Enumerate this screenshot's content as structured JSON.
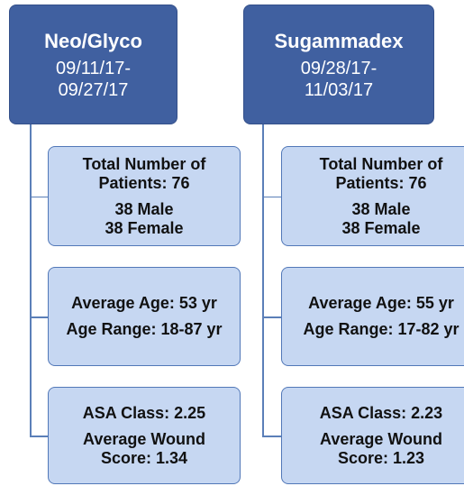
{
  "columns": [
    {
      "title": "Neo/Glyco",
      "dates": [
        "09/11/17-",
        "09/27/17"
      ],
      "boxes": [
        {
          "paragraphs": [
            [
              "Total Number of",
              "Patients: 76"
            ],
            [
              "38 Male",
              "38 Female"
            ]
          ]
        },
        {
          "paragraphs": [
            [
              "Average Age: 53 yr"
            ],
            [
              "Age Range: 18-87 yr"
            ]
          ]
        },
        {
          "paragraphs": [
            [
              "ASA Class: 2.25"
            ],
            [
              "Average Wound",
              "Score: 1.34"
            ]
          ]
        }
      ]
    },
    {
      "title": "Sugammadex",
      "dates": [
        "09/28/17-",
        "11/03/17"
      ],
      "boxes": [
        {
          "paragraphs": [
            [
              "Total Number of",
              "Patients: 76"
            ],
            [
              "38 Male",
              "38 Female"
            ]
          ]
        },
        {
          "paragraphs": [
            [
              "Average Age: 55 yr"
            ],
            [
              "Age Range: 17-82 yr"
            ]
          ]
        },
        {
          "paragraphs": [
            [
              "ASA Class: 2.23"
            ],
            [
              "Average Wound",
              "Score: 1.23"
            ]
          ]
        }
      ]
    }
  ]
}
